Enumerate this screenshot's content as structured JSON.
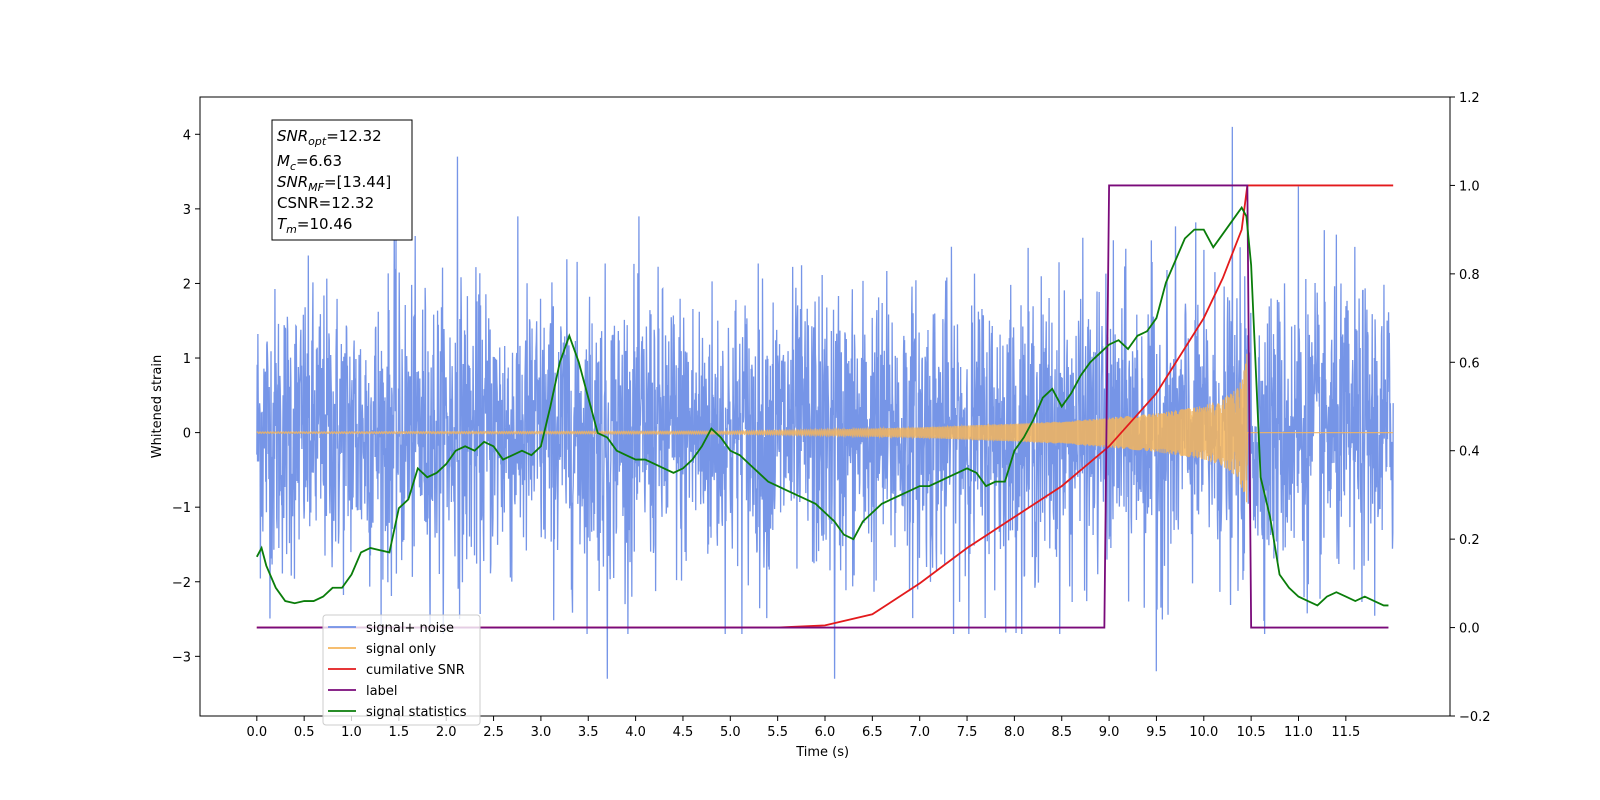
{
  "chart_data": {
    "type": "line",
    "title": "",
    "xlabel": "Time (s)",
    "ylabel": "Whitened strain",
    "xlim": [
      -0.6,
      12.6
    ],
    "ylim": [
      -3.8,
      4.5
    ],
    "y2lim": [
      -0.2,
      1.2
    ],
    "x_ticks": [
      "0.0",
      "0.5",
      "1.0",
      "1.5",
      "2.0",
      "2.5",
      "3.0",
      "3.5",
      "4.0",
      "4.5",
      "5.0",
      "5.5",
      "6.0",
      "6.5",
      "7.0",
      "7.5",
      "8.0",
      "8.5",
      "9.0",
      "9.5",
      "10.0",
      "10.5",
      "11.0",
      "11.5"
    ],
    "y_ticks": [
      "−3",
      "−2",
      "−1",
      "0",
      "1",
      "2",
      "3",
      "4"
    ],
    "y2_ticks": [
      "−0.2",
      "0.0",
      "0.2",
      "0.4",
      "0.6",
      "0.8",
      "1.0",
      "1.2"
    ],
    "grid": false,
    "legend_position": "bottom-left",
    "stats_box": {
      "snr_opt": {
        "base": "SNR",
        "sub": "opt",
        "value": "=12.32"
      },
      "mc": {
        "base": "M",
        "sub": "c",
        "value": "=6.63"
      },
      "snr_mf": {
        "base": "SNR",
        "sub": "MF",
        "value": "=[13.44]"
      },
      "csnr": {
        "text": "CSNR=12.32"
      },
      "tm": {
        "base": "T",
        "sub": "m",
        "value": "=10.46"
      }
    },
    "series": [
      {
        "name": "signal+ noise",
        "axis": "left",
        "color": "#6f8fe6",
        "kind": "noise",
        "noise_std": 0.95,
        "x_range": [
          0.0,
          12.0
        ],
        "notable_peaks": [
          [
            1.45,
            2.8
          ],
          [
            2.12,
            3.7
          ],
          [
            10.3,
            4.1
          ],
          [
            11.0,
            3.3
          ],
          [
            6.1,
            -3.3
          ],
          [
            3.7,
            -3.3
          ],
          [
            9.5,
            -3.2
          ]
        ]
      },
      {
        "name": "signal only",
        "axis": "left",
        "color": "#f5b55c",
        "kind": "chirp",
        "merger_time": 10.46,
        "x": [
          0.0,
          5.0,
          6.0,
          7.0,
          8.0,
          8.5,
          9.0,
          9.5,
          10.0,
          10.2,
          10.35,
          10.42,
          10.46,
          10.5,
          12.0
        ],
        "envelope": [
          0.01,
          0.02,
          0.04,
          0.07,
          0.12,
          0.15,
          0.2,
          0.26,
          0.36,
          0.45,
          0.6,
          0.8,
          1.1,
          0.0,
          0.0
        ]
      },
      {
        "name": "cumilative SNR",
        "axis": "right",
        "color": "#e31a1c",
        "x": [
          0.0,
          5.5,
          6.0,
          6.5,
          7.0,
          7.5,
          8.0,
          8.5,
          9.0,
          9.5,
          10.0,
          10.2,
          10.4,
          10.46,
          12.0
        ],
        "values": [
          0.0,
          0.0,
          0.005,
          0.03,
          0.1,
          0.18,
          0.25,
          0.32,
          0.41,
          0.53,
          0.7,
          0.79,
          0.9,
          1.0,
          1.0
        ]
      },
      {
        "name": "label",
        "axis": "right",
        "color": "#7a0a7a",
        "x": [
          0.0,
          8.95,
          9.0,
          10.46,
          10.5,
          11.95
        ],
        "values": [
          0.0,
          0.0,
          1.0,
          1.0,
          0.0,
          0.0
        ]
      },
      {
        "name": "signal statistics",
        "axis": "right",
        "color": "#0a7d0a",
        "x": [
          0.0,
          0.05,
          0.1,
          0.2,
          0.3,
          0.4,
          0.5,
          0.6,
          0.7,
          0.8,
          0.9,
          1.0,
          1.1,
          1.2,
          1.3,
          1.4,
          1.5,
          1.6,
          1.7,
          1.8,
          1.9,
          2.0,
          2.1,
          2.2,
          2.3,
          2.4,
          2.5,
          2.6,
          2.7,
          2.8,
          2.9,
          3.0,
          3.1,
          3.2,
          3.3,
          3.4,
          3.5,
          3.6,
          3.7,
          3.8,
          3.9,
          4.0,
          4.1,
          4.2,
          4.3,
          4.4,
          4.5,
          4.6,
          4.7,
          4.8,
          4.9,
          5.0,
          5.1,
          5.2,
          5.3,
          5.4,
          5.5,
          5.6,
          5.7,
          5.8,
          5.9,
          6.0,
          6.1,
          6.2,
          6.3,
          6.4,
          6.5,
          6.6,
          6.7,
          6.8,
          6.9,
          7.0,
          7.1,
          7.2,
          7.3,
          7.4,
          7.5,
          7.6,
          7.7,
          7.8,
          7.9,
          8.0,
          8.1,
          8.2,
          8.3,
          8.4,
          8.5,
          8.6,
          8.7,
          8.8,
          8.9,
          9.0,
          9.1,
          9.2,
          9.3,
          9.4,
          9.5,
          9.6,
          9.7,
          9.8,
          9.9,
          10.0,
          10.1,
          10.2,
          10.3,
          10.4,
          10.45,
          10.5,
          10.6,
          10.7,
          10.8,
          10.9,
          11.0,
          11.1,
          11.2,
          11.3,
          11.4,
          11.5,
          11.6,
          11.7,
          11.8,
          11.9,
          11.95
        ],
        "values": [
          0.16,
          0.18,
          0.14,
          0.09,
          0.06,
          0.055,
          0.06,
          0.06,
          0.07,
          0.09,
          0.09,
          0.12,
          0.17,
          0.18,
          0.175,
          0.17,
          0.27,
          0.29,
          0.36,
          0.34,
          0.35,
          0.37,
          0.4,
          0.41,
          0.4,
          0.42,
          0.41,
          0.38,
          0.39,
          0.4,
          0.39,
          0.41,
          0.5,
          0.6,
          0.66,
          0.6,
          0.52,
          0.44,
          0.43,
          0.4,
          0.39,
          0.38,
          0.38,
          0.37,
          0.36,
          0.35,
          0.36,
          0.38,
          0.41,
          0.45,
          0.43,
          0.4,
          0.39,
          0.37,
          0.35,
          0.33,
          0.32,
          0.31,
          0.3,
          0.29,
          0.28,
          0.26,
          0.24,
          0.21,
          0.2,
          0.24,
          0.26,
          0.28,
          0.29,
          0.3,
          0.31,
          0.32,
          0.32,
          0.33,
          0.34,
          0.35,
          0.36,
          0.35,
          0.32,
          0.33,
          0.33,
          0.4,
          0.43,
          0.47,
          0.52,
          0.54,
          0.5,
          0.53,
          0.57,
          0.6,
          0.62,
          0.64,
          0.65,
          0.63,
          0.66,
          0.67,
          0.7,
          0.78,
          0.83,
          0.88,
          0.9,
          0.9,
          0.86,
          0.89,
          0.92,
          0.95,
          0.93,
          0.82,
          0.34,
          0.25,
          0.12,
          0.09,
          0.07,
          0.06,
          0.05,
          0.07,
          0.08,
          0.07,
          0.06,
          0.07,
          0.06,
          0.05,
          0.05
        ]
      }
    ],
    "legend": [
      {
        "label": "signal+ noise",
        "color": "#6f8fe6"
      },
      {
        "label": "signal only",
        "color": "#f5b55c"
      },
      {
        "label": "cumilative SNR",
        "color": "#e31a1c"
      },
      {
        "label": "label",
        "color": "#7a0a7a"
      },
      {
        "label": "signal statistics",
        "color": "#0a7d0a"
      }
    ]
  }
}
